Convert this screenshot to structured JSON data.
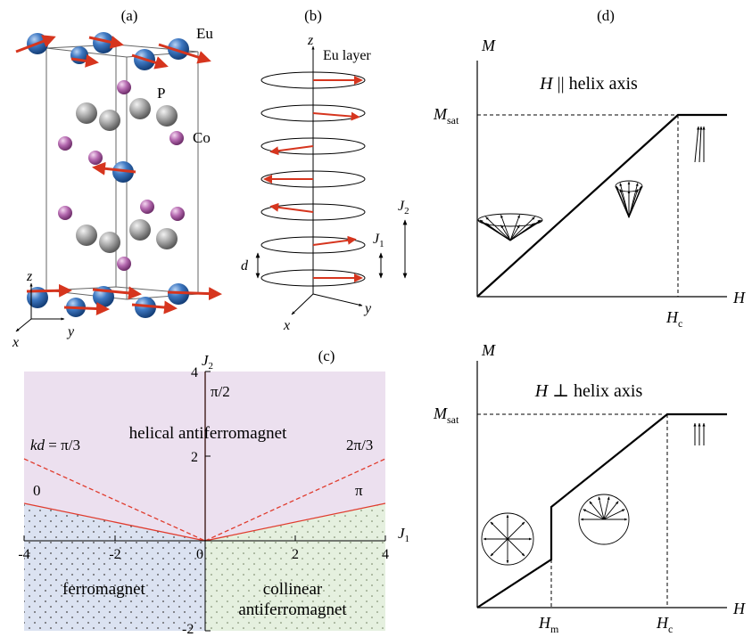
{
  "panels": {
    "a": {
      "label": "(a)",
      "atoms": [
        "Eu",
        "P",
        "Co"
      ],
      "axes": {
        "z": "z",
        "x": "x",
        "y": "y"
      }
    },
    "b": {
      "label": "(b)",
      "axis_z": "z",
      "axis_x": "x",
      "axis_y": "y",
      "layer_label": "Eu layer",
      "spacing": "d",
      "coupling_1": {
        "symbol": "J",
        "sub": "1"
      },
      "coupling_2": {
        "symbol": "J",
        "sub": "2"
      },
      "layer_spin_angles_deg": [
        0,
        30,
        150,
        180,
        210,
        340,
        0
      ]
    },
    "c": {
      "label": "(c)",
      "x_axis": {
        "symbol": "J",
        "sub": "1",
        "ticks": [
          "-4",
          "-2",
          "0",
          "2",
          "4"
        ]
      },
      "y_axis": {
        "symbol": "J",
        "sub": "2",
        "ticks": [
          "4",
          "2",
          "-2"
        ]
      },
      "phases": {
        "helical": "helical antiferromagnet",
        "ferro": "ferromagnet",
        "collinear_line1": "collinear",
        "collinear_line2": "antiferromagnet"
      },
      "kd_labels": {
        "prefix": "kd",
        "eq": " = π/3",
        "half_pi": "π/2",
        "two_pi_third": "2π/3",
        "zero": "0",
        "pi": "π"
      },
      "colors": {
        "helical": "#ece0ef",
        "ferro": "#dbe2f1",
        "collinear": "#e5f0df",
        "boundary": "#e03c2e"
      },
      "boundary_lines_j2_over_abs_j1": [
        {
          "kd": "0 / π",
          "slope": 0.25
        },
        {
          "kd": "π/3 / 2π/3",
          "slope": 0.5
        },
        {
          "kd": "π/2",
          "slope": "vertical"
        }
      ]
    },
    "d": {
      "label": "(d)",
      "top": {
        "y_axis": "M",
        "x_axis": "H",
        "msat": {
          "symbol": "M",
          "sub": "sat"
        },
        "hc": {
          "symbol": "H",
          "sub": "c"
        },
        "title_symbol": "H",
        "title_rest": " || helix axis"
      },
      "bottom": {
        "y_axis": "M",
        "x_axis": "H",
        "msat": {
          "symbol": "M",
          "sub": "sat"
        },
        "hm": {
          "symbol": "H",
          "sub": "m"
        },
        "hc": {
          "symbol": "H",
          "sub": "c"
        },
        "title_symbol": "H",
        "title_rest": " ⊥ helix axis"
      }
    }
  }
}
